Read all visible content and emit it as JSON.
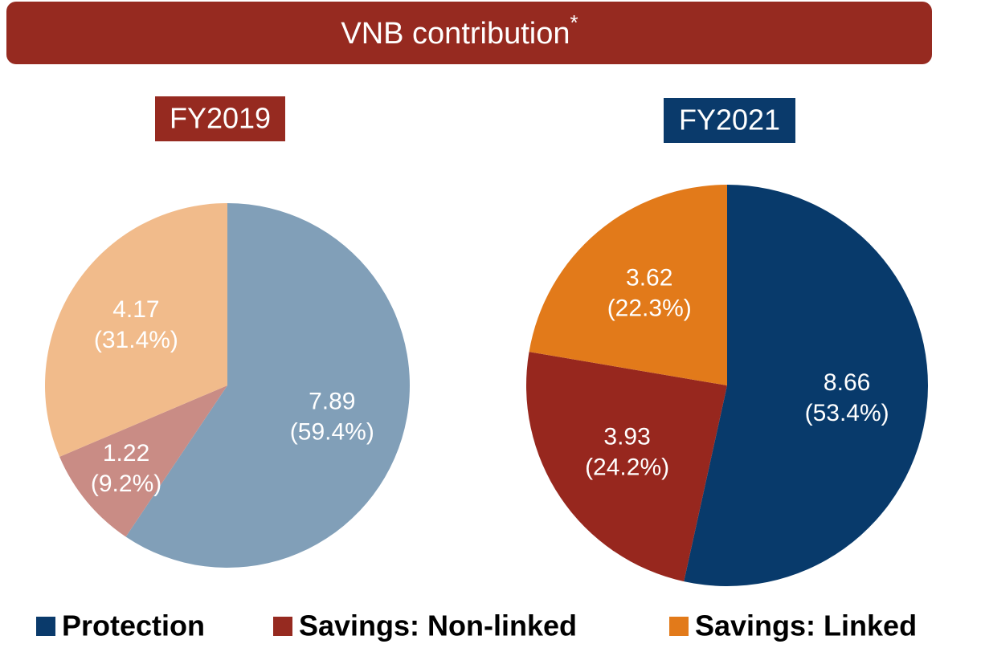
{
  "header": {
    "title": "VNB contribution",
    "note": "*"
  },
  "chart_data": [
    {
      "type": "pie",
      "title": "FY2019",
      "title_color": "#962a20",
      "categories": [
        "Protection",
        "Savings: Non-linked",
        "Savings: Linked"
      ],
      "amounts": [
        7.89,
        1.22,
        4.17
      ],
      "values": [
        59.4,
        9.2,
        31.4
      ],
      "value_labels": [
        "(59.4%)",
        "(9.2%)",
        "(31.4%)"
      ],
      "colors": [
        "#819fb8",
        "#c98c85",
        "#f1bb8b"
      ]
    },
    {
      "type": "pie",
      "title": "FY2021",
      "title_color": "#0a3a6b",
      "categories": [
        "Protection",
        "Savings: Non-linked",
        "Savings: Linked"
      ],
      "amounts": [
        8.66,
        3.93,
        3.62
      ],
      "values": [
        53.4,
        24.2,
        22.3
      ],
      "value_labels": [
        "(53.4%)",
        "(24.2%)",
        "(22.3%)"
      ],
      "colors": [
        "#083a6b",
        "#97271e",
        "#e27a1a"
      ]
    }
  ],
  "legend": {
    "labels": [
      "Protection",
      "Savings: Non-linked",
      "Savings: Linked"
    ],
    "colors": [
      "#0a3a6b",
      "#962a20",
      "#e27a1a"
    ]
  }
}
